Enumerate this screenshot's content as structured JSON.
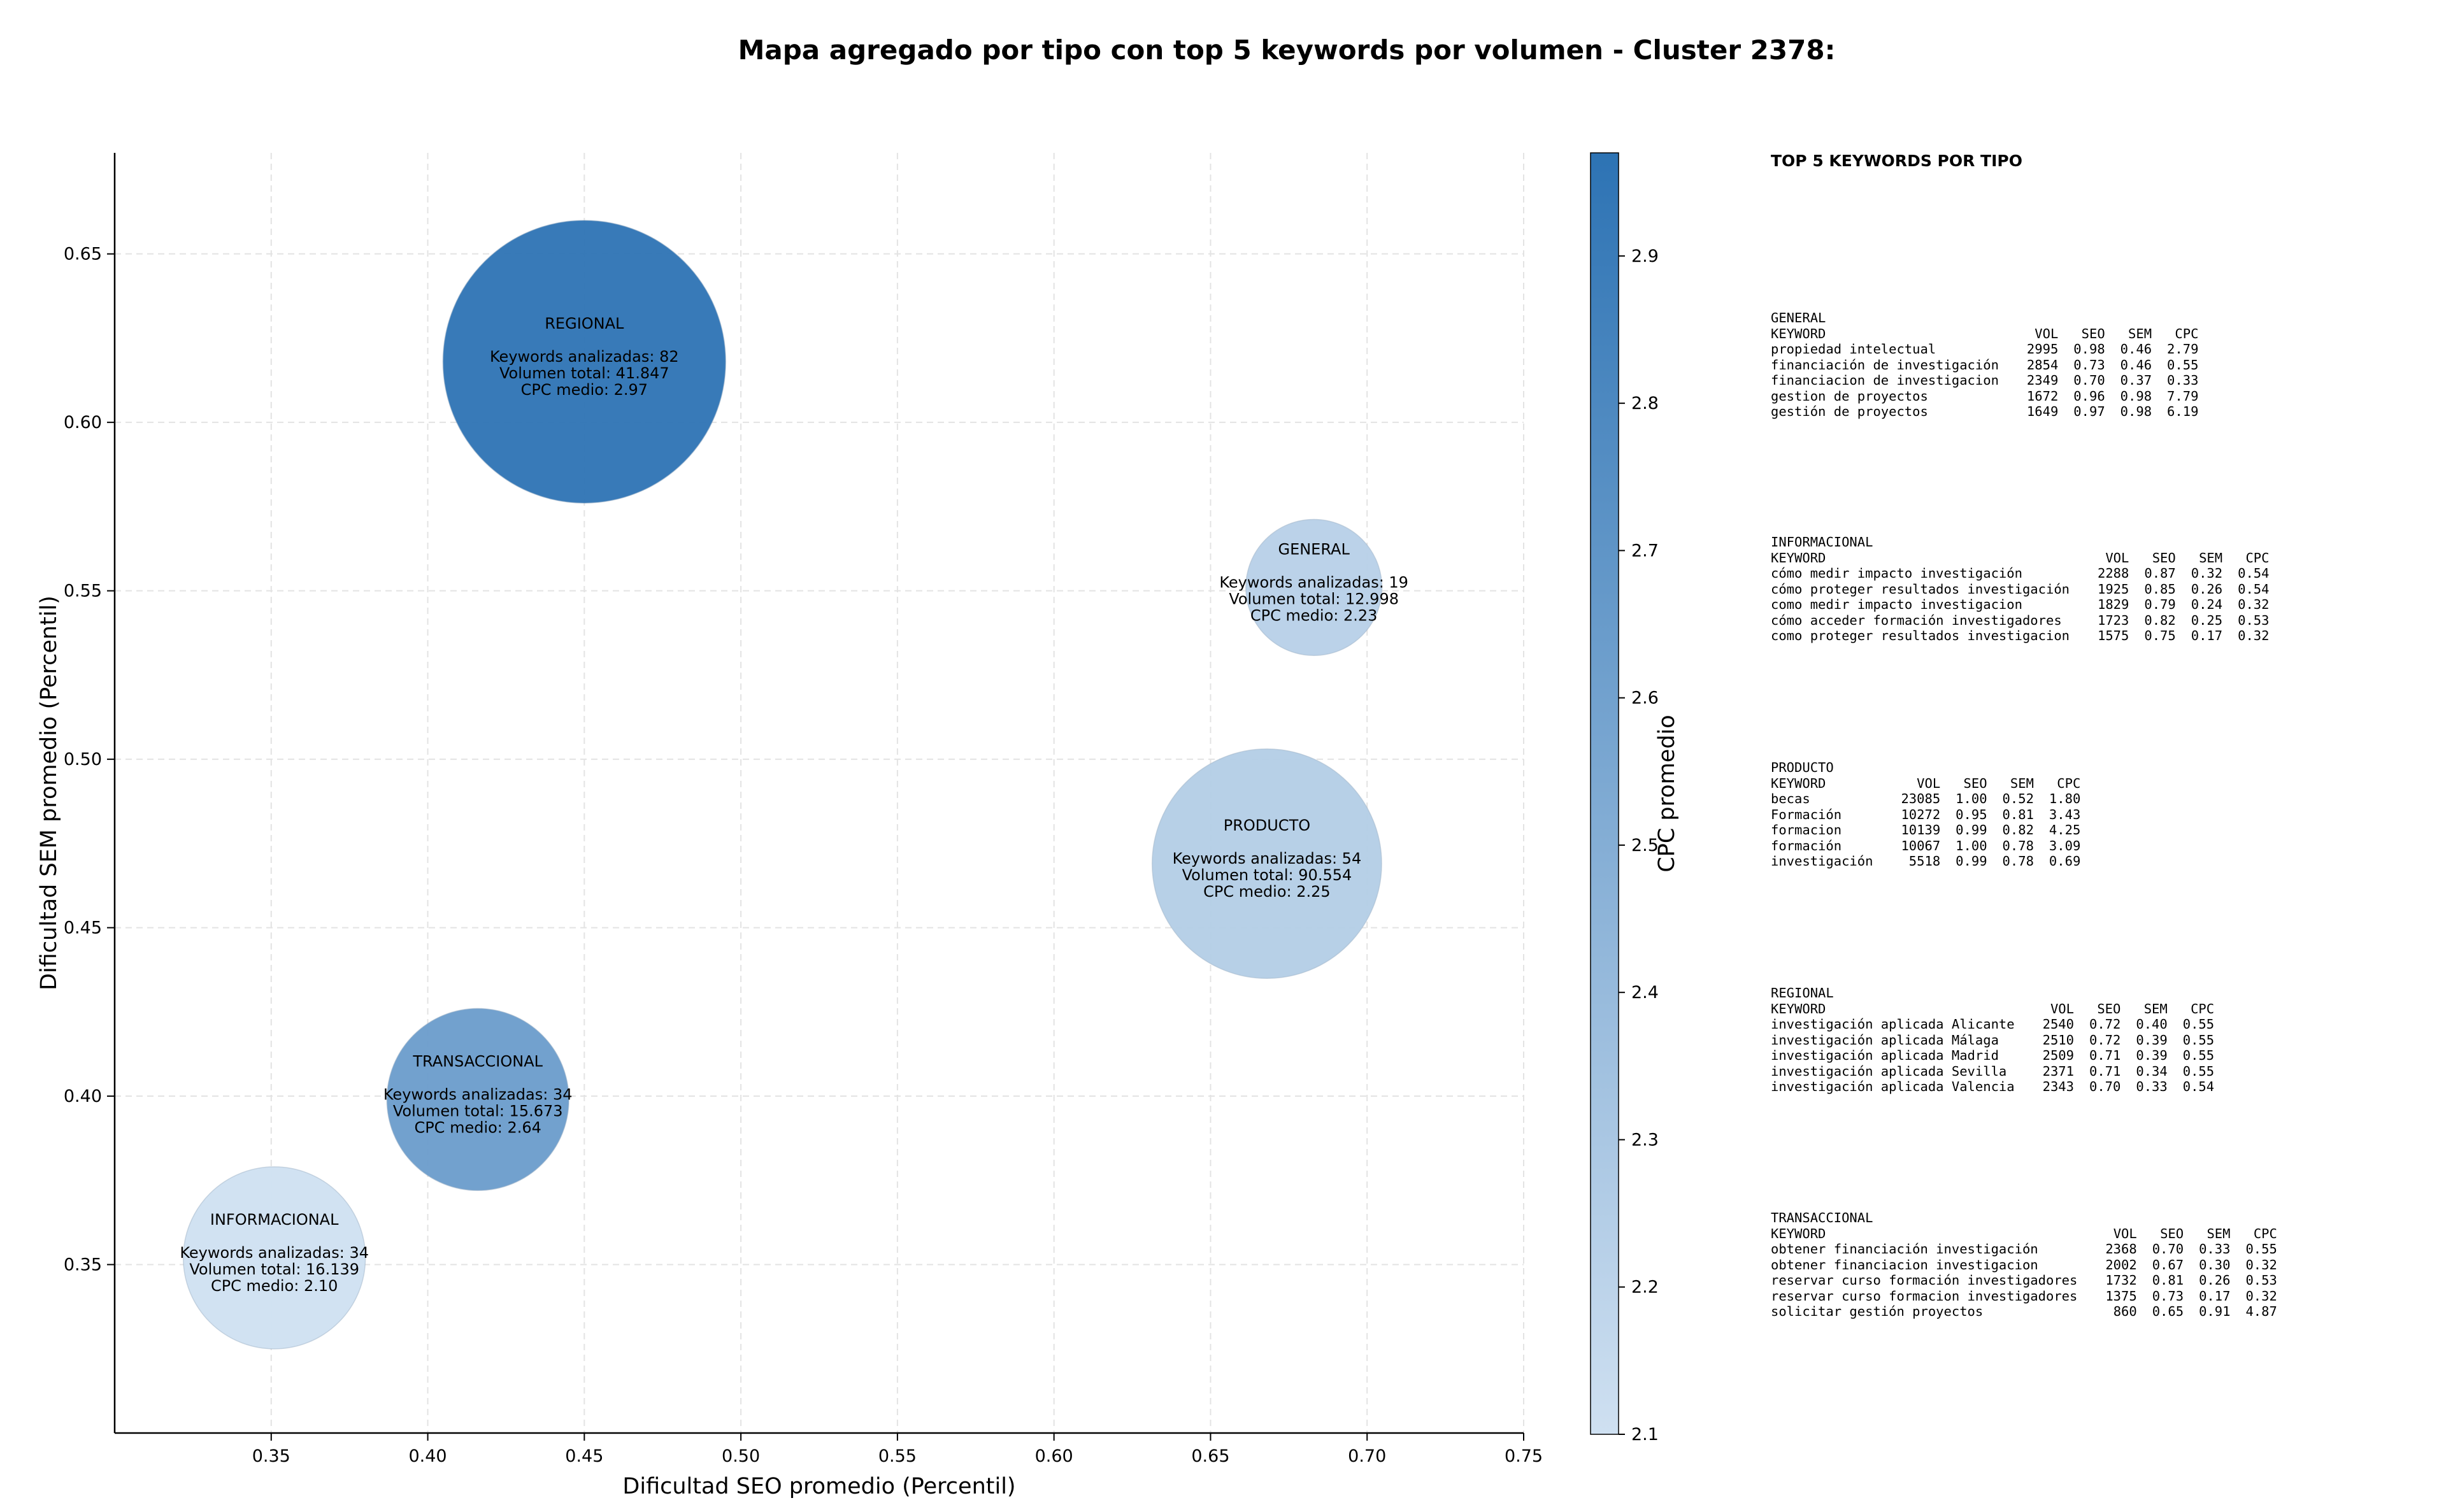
{
  "title": "Mapa agregado por tipo con top 5 keywords por volumen - Cluster 2378:",
  "chart_data": {
    "type": "scatter",
    "title": "Mapa agregado por tipo con top 5 keywords por volumen - Cluster 2378:",
    "xlabel": "Dificultad SEO promedio (Percentil)",
    "ylabel": "Dificultad SEM promedio (Percentil)",
    "xlim": [
      0.3,
      0.75
    ],
    "ylim": [
      0.3,
      0.68
    ],
    "xticks": [
      "0.35",
      "0.40",
      "0.45",
      "0.50",
      "0.55",
      "0.60",
      "0.65",
      "0.70",
      "0.75"
    ],
    "yticks": [
      "0.35",
      "0.40",
      "0.45",
      "0.50",
      "0.55",
      "0.60",
      "0.65"
    ],
    "grid": true,
    "colorbar": {
      "label": "CPC promedio",
      "range": [
        2.1,
        2.97
      ],
      "ticks": [
        "2.1",
        "2.2",
        "2.3",
        "2.4",
        "2.5",
        "2.6",
        "2.7",
        "2.8",
        "2.9"
      ],
      "color_low": "#cfe0f1",
      "color_high": "#2d73b4"
    },
    "bubbles": [
      {
        "label": "REGIONAL",
        "x": 0.45,
        "y": 0.618,
        "keywords": 82,
        "volume": 41847,
        "line1": "Keywords analizadas: 82",
        "line2": "Volumen total: 41.847",
        "line3": "CPC medio: 2.97",
        "cpc": 2.97
      },
      {
        "label": "GENERAL",
        "x": 0.683,
        "y": 0.551,
        "keywords": 19,
        "volume": 12998,
        "line1": "Keywords analizadas: 19",
        "line2": "Volumen total: 12.998",
        "line3": "CPC medio: 2.23",
        "cpc": 2.23
      },
      {
        "label": "PRODUCTO",
        "x": 0.668,
        "y": 0.469,
        "keywords": 54,
        "volume": 90554,
        "line1": "Keywords analizadas: 54",
        "line2": "Volumen total: 90.554",
        "line3": "CPC medio: 2.25",
        "cpc": 2.25
      },
      {
        "label": "TRANSACCIONAL",
        "x": 0.416,
        "y": 0.399,
        "keywords": 34,
        "volume": 15673,
        "line1": "Keywords analizadas: 34",
        "line2": "Volumen total: 15.673",
        "line3": "CPC medio: 2.64",
        "cpc": 2.64
      },
      {
        "label": "INFORMACIONAL",
        "x": 0.351,
        "y": 0.352,
        "keywords": 34,
        "volume": 16139,
        "line1": "Keywords analizadas: 34",
        "line2": "Volumen total: 16.139",
        "line3": "CPC medio: 2.10",
        "cpc": 2.1
      }
    ]
  },
  "panel": {
    "heading": "TOP 5 KEYWORDS POR TIPO",
    "header": {
      "keyword": "KEYWORD",
      "vol": "VOL",
      "seo": "SEO",
      "sem": "SEM",
      "cpc": "CPC"
    },
    "groups": [
      {
        "name": "GENERAL",
        "rows": [
          {
            "keyword": "propiedad intelectual",
            "vol": "2995",
            "seo": "0.98",
            "sem": "0.46",
            "cpc": "2.79"
          },
          {
            "keyword": "financiación de investigación",
            "vol": "2854",
            "seo": "0.73",
            "sem": "0.46",
            "cpc": "0.55"
          },
          {
            "keyword": "financiacion de investigacion",
            "vol": "2349",
            "seo": "0.70",
            "sem": "0.37",
            "cpc": "0.33"
          },
          {
            "keyword": "gestion de proyectos",
            "vol": "1672",
            "seo": "0.96",
            "sem": "0.98",
            "cpc": "7.79"
          },
          {
            "keyword": "gestión de proyectos",
            "vol": "1649",
            "seo": "0.97",
            "sem": "0.98",
            "cpc": "6.19"
          }
        ]
      },
      {
        "name": "INFORMACIONAL",
        "rows": [
          {
            "keyword": "cómo medir impacto investigación",
            "vol": "2288",
            "seo": "0.87",
            "sem": "0.32",
            "cpc": "0.54"
          },
          {
            "keyword": "cómo proteger resultados investigación",
            "vol": "1925",
            "seo": "0.85",
            "sem": "0.26",
            "cpc": "0.54"
          },
          {
            "keyword": "como medir impacto investigacion",
            "vol": "1829",
            "seo": "0.79",
            "sem": "0.24",
            "cpc": "0.32"
          },
          {
            "keyword": "cómo acceder formación investigadores",
            "vol": "1723",
            "seo": "0.82",
            "sem": "0.25",
            "cpc": "0.53"
          },
          {
            "keyword": "como proteger resultados investigacion",
            "vol": "1575",
            "seo": "0.75",
            "sem": "0.17",
            "cpc": "0.32"
          }
        ]
      },
      {
        "name": "PRODUCTO",
        "rows": [
          {
            "keyword": "becas",
            "vol": "23085",
            "seo": "1.00",
            "sem": "0.52",
            "cpc": "1.80"
          },
          {
            "keyword": "Formación",
            "vol": "10272",
            "seo": "0.95",
            "sem": "0.81",
            "cpc": "3.43"
          },
          {
            "keyword": "formacion",
            "vol": "10139",
            "seo": "0.99",
            "sem": "0.82",
            "cpc": "4.25"
          },
          {
            "keyword": "formación",
            "vol": "10067",
            "seo": "1.00",
            "sem": "0.78",
            "cpc": "3.09"
          },
          {
            "keyword": "investigación",
            "vol": "5518",
            "seo": "0.99",
            "sem": "0.78",
            "cpc": "0.69"
          }
        ]
      },
      {
        "name": "REGIONAL",
        "rows": [
          {
            "keyword": "investigación aplicada Alicante",
            "vol": "2540",
            "seo": "0.72",
            "sem": "0.40",
            "cpc": "0.55"
          },
          {
            "keyword": "investigación aplicada Málaga",
            "vol": "2510",
            "seo": "0.72",
            "sem": "0.39",
            "cpc": "0.55"
          },
          {
            "keyword": "investigación aplicada Madrid",
            "vol": "2509",
            "seo": "0.71",
            "sem": "0.39",
            "cpc": "0.55"
          },
          {
            "keyword": "investigación aplicada Sevilla",
            "vol": "2371",
            "seo": "0.71",
            "sem": "0.34",
            "cpc": "0.55"
          },
          {
            "keyword": "investigación aplicada Valencia",
            "vol": "2343",
            "seo": "0.70",
            "sem": "0.33",
            "cpc": "0.54"
          }
        ]
      },
      {
        "name": "TRANSACCIONAL",
        "rows": [
          {
            "keyword": "obtener financiación investigación",
            "vol": "2368",
            "seo": "0.70",
            "sem": "0.33",
            "cpc": "0.55"
          },
          {
            "keyword": "obtener financiacion investigacion",
            "vol": "2002",
            "seo": "0.67",
            "sem": "0.30",
            "cpc": "0.32"
          },
          {
            "keyword": "reservar curso formación investigadores",
            "vol": "1732",
            "seo": "0.81",
            "sem": "0.26",
            "cpc": "0.53"
          },
          {
            "keyword": "reservar curso formacion investigadores",
            "vol": "1375",
            "seo": "0.73",
            "sem": "0.17",
            "cpc": "0.32"
          },
          {
            "keyword": "solicitar gestión proyectos",
            "vol": "860",
            "seo": "0.65",
            "sem": "0.91",
            "cpc": "4.87"
          }
        ]
      }
    ]
  }
}
